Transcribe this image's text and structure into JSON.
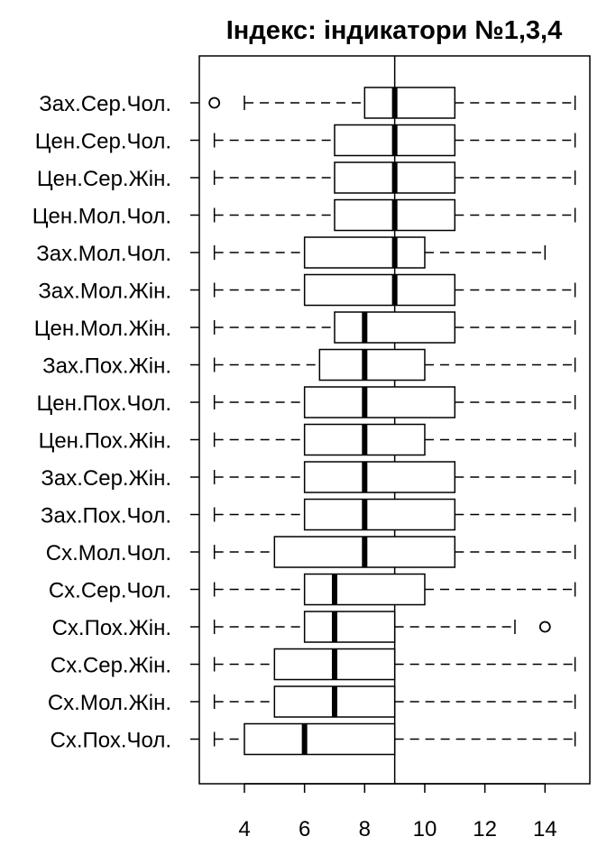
{
  "chart_data": {
    "type": "boxplot",
    "orientation": "horizontal",
    "title": "Індекс: індикатори №1,3,4",
    "xlabel": "",
    "ylabel": "",
    "xlim": [
      2.5,
      15.5
    ],
    "x_ticks": [
      4,
      6,
      8,
      10,
      12,
      14
    ],
    "reference_line": 9,
    "grid": false,
    "categories": [
      "Зах.Сер.Чол.",
      "Цен.Сер.Чол.",
      "Цен.Сер.Жін.",
      "Цен.Мол.Чол.",
      "Зах.Мол.Чол.",
      "Зах.Мол.Жін.",
      "Цен.Мол.Жін.",
      "Зах.Пох.Жін.",
      "Цен.Пох.Чол.",
      "Цен.Пох.Жін.",
      "Зах.Сер.Жін.",
      "Зах.Пох.Чол.",
      "Сх.Мол.Чол.",
      "Сх.Сер.Чол.",
      "Сх.Пох.Жін.",
      "Сх.Сер.Жін.",
      "Сх.Мол.Жін.",
      "Сх.Пох.Чол."
    ],
    "boxes": [
      {
        "whisker_low": 4,
        "q1": 8,
        "median": 9,
        "q3": 11,
        "whisker_high": 15,
        "outliers": [
          3
        ]
      },
      {
        "whisker_low": 3,
        "q1": 7,
        "median": 9,
        "q3": 11,
        "whisker_high": 15,
        "outliers": []
      },
      {
        "whisker_low": 3,
        "q1": 7,
        "median": 9,
        "q3": 11,
        "whisker_high": 15,
        "outliers": []
      },
      {
        "whisker_low": 3,
        "q1": 7,
        "median": 9,
        "q3": 11,
        "whisker_high": 15,
        "outliers": []
      },
      {
        "whisker_low": 3,
        "q1": 6,
        "median": 9,
        "q3": 10,
        "whisker_high": 14,
        "outliers": []
      },
      {
        "whisker_low": 3,
        "q1": 6,
        "median": 9,
        "q3": 11,
        "whisker_high": 15,
        "outliers": []
      },
      {
        "whisker_low": 3,
        "q1": 7,
        "median": 8,
        "q3": 11,
        "whisker_high": 15,
        "outliers": []
      },
      {
        "whisker_low": 3,
        "q1": 6.5,
        "median": 8,
        "q3": 10,
        "whisker_high": 15,
        "outliers": []
      },
      {
        "whisker_low": 3,
        "q1": 6,
        "median": 8,
        "q3": 11,
        "whisker_high": 15,
        "outliers": []
      },
      {
        "whisker_low": 3,
        "q1": 6,
        "median": 8,
        "q3": 10,
        "whisker_high": 15,
        "outliers": []
      },
      {
        "whisker_low": 3,
        "q1": 6,
        "median": 8,
        "q3": 11,
        "whisker_high": 15,
        "outliers": []
      },
      {
        "whisker_low": 3,
        "q1": 6,
        "median": 8,
        "q3": 11,
        "whisker_high": 15,
        "outliers": []
      },
      {
        "whisker_low": 3,
        "q1": 5,
        "median": 8,
        "q3": 11,
        "whisker_high": 15,
        "outliers": []
      },
      {
        "whisker_low": 3,
        "q1": 6,
        "median": 7,
        "q3": 10,
        "whisker_high": 15,
        "outliers": []
      },
      {
        "whisker_low": 3,
        "q1": 6,
        "median": 7,
        "q3": 9,
        "whisker_high": 13,
        "outliers": [
          14
        ]
      },
      {
        "whisker_low": 3,
        "q1": 5,
        "median": 7,
        "q3": 9,
        "whisker_high": 15,
        "outliers": []
      },
      {
        "whisker_low": 3,
        "q1": 5,
        "median": 7,
        "q3": 9,
        "whisker_high": 15,
        "outliers": []
      },
      {
        "whisker_low": 3,
        "q1": 4,
        "median": 6,
        "q3": 9,
        "whisker_high": 15,
        "outliers": []
      }
    ]
  }
}
